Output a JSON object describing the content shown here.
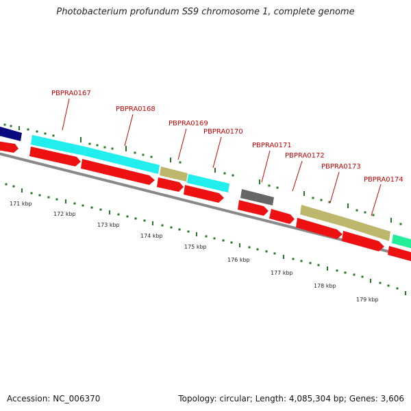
{
  "title": "Photobacterium profundum SS9 chromosome 1, complete genome",
  "footer": {
    "accession": "Accession: NC_006370",
    "stats": "Topology: circular; Length: 4,085,304 bp; Genes: 3,606"
  },
  "colors": {
    "cds_red": "#ee1111",
    "backbone": "#888888",
    "label_red": "#cc0000",
    "tick_green": "#227722",
    "navy": "#0a0a80",
    "cyan": "#22eeee",
    "khaki": "#bdb76b",
    "gray": "#666666",
    "spring": "#22ee99"
  },
  "kbp_ticks": [
    "171 kbp",
    "172 kbp",
    "173 kbp",
    "174 kbp",
    "175 kbp",
    "176 kbp",
    "177 kbp",
    "178 kbp",
    "179 kbp"
  ],
  "genes": [
    {
      "id": "PBPRA0167",
      "color": "cyan"
    },
    {
      "id": "PBPRA0168",
      "color": "cyan"
    },
    {
      "id": "PBPRA0169",
      "color": "khaki"
    },
    {
      "id": "PBPRA0170",
      "color": "cyan"
    },
    {
      "id": "PBPRA0171",
      "color": "gray"
    },
    {
      "id": "PBPRA0172",
      "color": "khaki"
    },
    {
      "id": "PBPRA0173",
      "color": "khaki"
    },
    {
      "id": "PBPRA0174",
      "color": "spring"
    }
  ]
}
